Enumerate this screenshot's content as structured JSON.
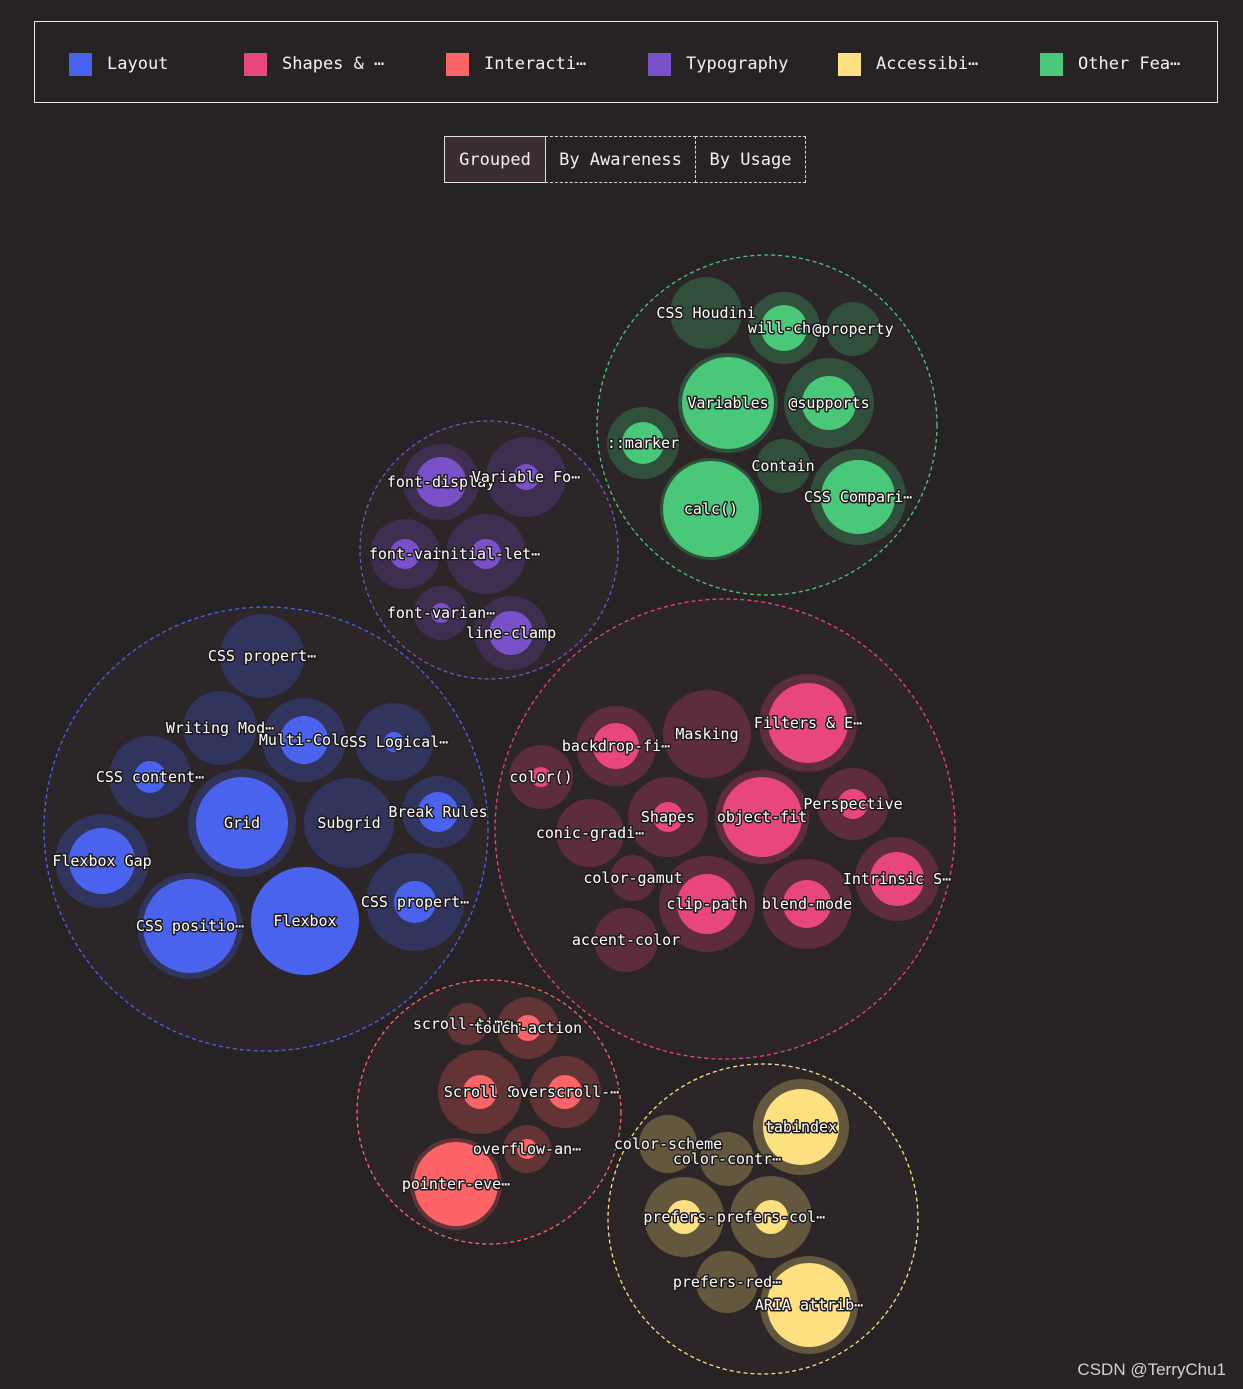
{
  "legend": {
    "items": [
      {
        "label": "Layout",
        "color": "#4a63ee"
      },
      {
        "label": "Shapes & ⋯",
        "color": "#e8467f"
      },
      {
        "label": "Interacti⋯",
        "color": "#fd6467"
      },
      {
        "label": "Typography",
        "color": "#7a50c8"
      },
      {
        "label": "Accessibi⋯",
        "color": "#fde080"
      },
      {
        "label": "Other Fea⋯",
        "color": "#48c878"
      }
    ]
  },
  "tabs": [
    {
      "label": "Grouped",
      "active": true
    },
    {
      "label": "By Awareness",
      "active": false
    },
    {
      "label": "By Usage",
      "active": false
    }
  ],
  "watermark": "CSDN @TerryChu1",
  "chart_data": {
    "type": "bubble",
    "groups": [
      {
        "name": "Layout",
        "color": "#4a63ee",
        "items": [
          {
            "label": "CSS propert⋯",
            "awareness": 42,
            "usage": 0
          },
          {
            "label": "Writing Mod⋯",
            "awareness": 37,
            "usage": 0
          },
          {
            "label": "Multi-Colu",
            "awareness": 42,
            "usage": 24
          },
          {
            "label": "CSS Logical⋯",
            "awareness": 39,
            "usage": 10
          },
          {
            "label": "CSS content⋯",
            "awareness": 41,
            "usage": 16
          },
          {
            "label": "Grid",
            "awareness": 54,
            "usage": 46
          },
          {
            "label": "Subgrid",
            "awareness": 45,
            "usage": 0
          },
          {
            "label": "Break Rules",
            "awareness": 36,
            "usage": 20
          },
          {
            "label": "Flexbox Gap",
            "awareness": 47,
            "usage": 33
          },
          {
            "label": "CSS positio⋯",
            "awareness": 53,
            "usage": 47
          },
          {
            "label": "Flexbox",
            "awareness": 54,
            "usage": 54
          },
          {
            "label": "CSS propert⋯",
            "awareness": 49,
            "usage": 21
          }
        ]
      },
      {
        "name": "Shapes & ⋯",
        "color": "#e8467f",
        "items": [
          {
            "label": "backdrop-fi⋯",
            "awareness": 40,
            "usage": 23
          },
          {
            "label": "Masking",
            "awareness": 44,
            "usage": 0
          },
          {
            "label": "Filters & E⋯",
            "awareness": 49,
            "usage": 40
          },
          {
            "label": "color()",
            "awareness": 32,
            "usage": 10
          },
          {
            "label": "conic-gradi⋯",
            "awareness": 34,
            "usage": 0
          },
          {
            "label": "Shapes",
            "awareness": 40,
            "usage": 15
          },
          {
            "label": "object-fit",
            "awareness": 47,
            "usage": 40
          },
          {
            "label": "Perspective",
            "awareness": 36,
            "usage": 15
          },
          {
            "label": "color-gamut",
            "awareness": 23,
            "usage": 0
          },
          {
            "label": "clip-path",
            "awareness": 48,
            "usage": 30
          },
          {
            "label": "blend-mode",
            "awareness": 45,
            "usage": 24
          },
          {
            "label": "Intrinsic S⋯",
            "awareness": 42,
            "usage": 27
          },
          {
            "label": "accent-color",
            "awareness": 32,
            "usage": 0
          }
        ]
      },
      {
        "name": "Interacti⋯",
        "color": "#fd6467",
        "items": [
          {
            "label": "scroll-time⋯",
            "awareness": 21,
            "usage": 0
          },
          {
            "label": "touch-action",
            "awareness": 31,
            "usage": 13
          },
          {
            "label": "Scroll S",
            "awareness": 42,
            "usage": 17
          },
          {
            "label": "overscroll-⋯",
            "awareness": 36,
            "usage": 17
          },
          {
            "label": "overflow-an⋯",
            "awareness": 24,
            "usage": 10
          },
          {
            "label": "pointer-eve⋯",
            "awareness": 46,
            "usage": 42
          }
        ]
      },
      {
        "name": "Typography",
        "color": "#7a50c8",
        "items": [
          {
            "label": "font-display",
            "awareness": 38,
            "usage": 25
          },
          {
            "label": "Variable Fo⋯",
            "awareness": 40,
            "usage": 13
          },
          {
            "label": "font-var",
            "awareness": 35,
            "usage": 15
          },
          {
            "label": "initial-let⋯",
            "awareness": 40,
            "usage": 15
          },
          {
            "label": "font-varian⋯",
            "awareness": 27,
            "usage": 10
          },
          {
            "label": "line-clamp",
            "awareness": 37,
            "usage": 22
          }
        ]
      },
      {
        "name": "Accessibi⋯",
        "color": "#fde080",
        "items": [
          {
            "label": "tabindex",
            "awareness": 48,
            "usage": 38
          },
          {
            "label": "color-scheme",
            "awareness": 29,
            "usage": 0
          },
          {
            "label": "color-contr⋯",
            "awareness": 27,
            "usage": 0
          },
          {
            "label": "prefers-r",
            "awareness": 40,
            "usage": 17
          },
          {
            "label": "prefers-col⋯",
            "awareness": 41,
            "usage": 17
          },
          {
            "label": "prefers-red⋯",
            "awareness": 31,
            "usage": 0
          },
          {
            "label": "ARIA attrib⋯",
            "awareness": 49,
            "usage": 42
          }
        ]
      },
      {
        "name": "Other Fea⋯",
        "color": "#48c878",
        "items": [
          {
            "label": "CSS Houdini",
            "awareness": 36,
            "usage": 0
          },
          {
            "label": "will-cha",
            "awareness": 36,
            "usage": 23
          },
          {
            "label": "@property",
            "awareness": 27,
            "usage": 0
          },
          {
            "label": "Variables",
            "awareness": 50,
            "usage": 46
          },
          {
            "label": "@supports",
            "awareness": 45,
            "usage": 27
          },
          {
            "label": "::marker",
            "awareness": 36,
            "usage": 21
          },
          {
            "label": "Contain",
            "awareness": 27,
            "usage": 0
          },
          {
            "label": "calc()",
            "awareness": 51,
            "usage": 48
          },
          {
            "label": "CSS Compari⋯",
            "awareness": 48,
            "usage": 37
          }
        ]
      }
    ]
  }
}
